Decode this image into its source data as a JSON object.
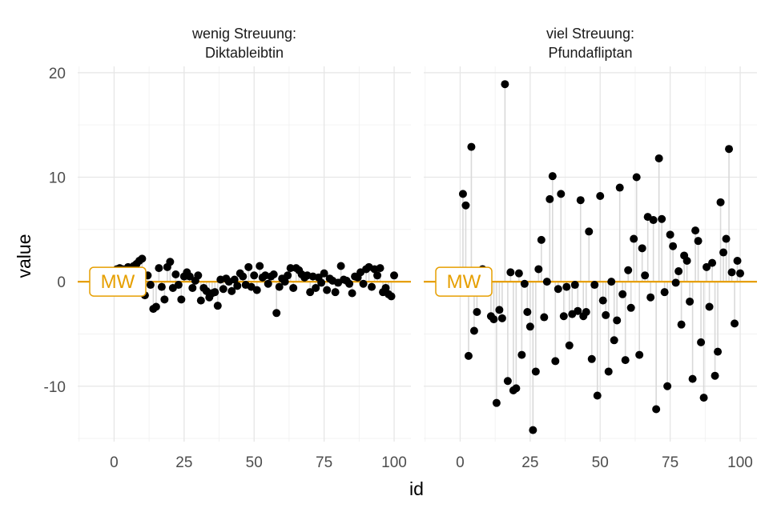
{
  "colors": {
    "mean_line": "#e69f00",
    "points": "#000000",
    "residual": "#d9d9d9",
    "grid": "#e6e6e6"
  },
  "chart_data": {
    "type": "scatter",
    "xlabel": "id",
    "ylabel": "value",
    "xlim": [
      -13,
      106
    ],
    "ylim": [
      -15.3,
      20.6
    ],
    "x_ticks": [
      0,
      25,
      50,
      75,
      100
    ],
    "y_ticks": [
      -10,
      0,
      10,
      20
    ],
    "mean_value": 0,
    "mean_label": "MW",
    "facets": [
      {
        "strip_line1": "wenig Streuung:",
        "strip_line2": "Diktableibtin",
        "y": [
          1.2,
          1.3,
          1.2,
          0.9,
          1.4,
          1.0,
          1.5,
          1.7,
          2.0,
          2.2,
          -1.3,
          0.6,
          -0.3,
          -2.6,
          -2.4,
          1.3,
          -0.5,
          -1.7,
          1.4,
          1.9,
          -0.6,
          0.7,
          -0.3,
          -1.7,
          0.5,
          0.9,
          0.5,
          -0.6,
          0.1,
          0.6,
          -1.8,
          -0.6,
          -0.9,
          -1.5,
          -1.1,
          -1.0,
          -2.3,
          0.2,
          -0.7,
          0.3,
          0.0,
          -0.9,
          0.2,
          -0.4,
          0.8,
          0.5,
          -0.3,
          1.4,
          -0.5,
          0.6,
          -0.8,
          1.5,
          0.4,
          0.6,
          -0.2,
          0.5,
          0.7,
          -3.0,
          -0.5,
          0.3,
          0.0,
          0.6,
          1.3,
          -0.6,
          1.3,
          1.1,
          0.7,
          0.4,
          0.6,
          -1.0,
          0.5,
          -0.6,
          0.4,
          -0.1,
          0.8,
          -0.8,
          0.3,
          0.1,
          -1.0,
          -0.1,
          1.5,
          0.2,
          0.1,
          -0.2,
          -1.1,
          0.5,
          0.4,
          0.9,
          -0.2,
          1.2,
          1.4,
          -0.5,
          1.2,
          0.6,
          1.3,
          -1.0,
          -0.6,
          -1.2,
          -1.4,
          0.6
        ]
      },
      {
        "strip_line1": "viel Streuung:",
        "strip_line2": "Pfundafliptan",
        "y": [
          8.4,
          7.3,
          -7.1,
          12.9,
          -4.7,
          -2.9,
          0.4,
          1.2,
          -0.5,
          0.8,
          -3.3,
          -3.6,
          -11.6,
          -2.7,
          -3.5,
          18.9,
          -9.5,
          0.9,
          -10.4,
          -10.2,
          0.8,
          -7.0,
          -0.2,
          -2.9,
          -4.3,
          -14.2,
          -8.6,
          1.2,
          4.0,
          -3.4,
          0.0,
          7.9,
          10.1,
          -7.6,
          -0.7,
          8.4,
          -3.3,
          -0.5,
          -6.1,
          -3.1,
          -0.3,
          -2.8,
          7.8,
          -3.3,
          -2.9,
          4.8,
          -7.4,
          -0.3,
          -10.9,
          8.2,
          -1.8,
          -3.2,
          -8.6,
          0.0,
          -5.6,
          -3.7,
          9.0,
          -1.2,
          -7.5,
          1.1,
          -2.5,
          4.1,
          10.0,
          -7.0,
          3.2,
          0.6,
          6.2,
          -1.5,
          5.9,
          -12.2,
          11.8,
          6.0,
          -1.0,
          -10.0,
          4.5,
          3.4,
          -0.1,
          1.0,
          -4.1,
          2.5,
          2.0,
          -1.9,
          -9.3,
          4.9,
          3.9,
          -5.8,
          -11.1,
          1.4,
          -2.4,
          1.8,
          -9.0,
          -6.7,
          7.6,
          2.8,
          4.1,
          12.7,
          0.9,
          -4.0,
          2.0,
          0.8
        ]
      }
    ]
  }
}
